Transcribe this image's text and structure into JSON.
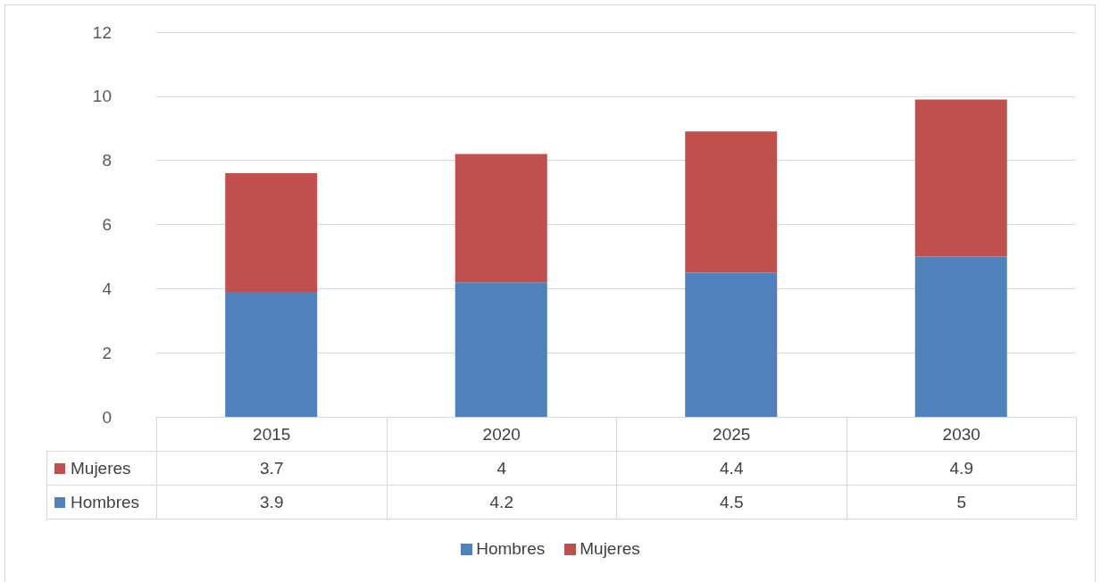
{
  "chart_data": {
    "type": "bar",
    "stacked": true,
    "categories": [
      "2015",
      "2020",
      "2025",
      "2030"
    ],
    "series": [
      {
        "name": "Hombres",
        "color": "#4f81bd",
        "values": [
          3.9,
          4.2,
          4.5,
          5
        ]
      },
      {
        "name": "Mujeres",
        "color": "#c0504d",
        "values": [
          3.7,
          4,
          4.4,
          4.9
        ]
      }
    ],
    "ylim": [
      0,
      12
    ],
    "yticks": [
      0,
      2,
      4,
      6,
      8,
      10,
      12
    ],
    "grid": "y",
    "legend": "bottom",
    "data_labels": true
  }
}
